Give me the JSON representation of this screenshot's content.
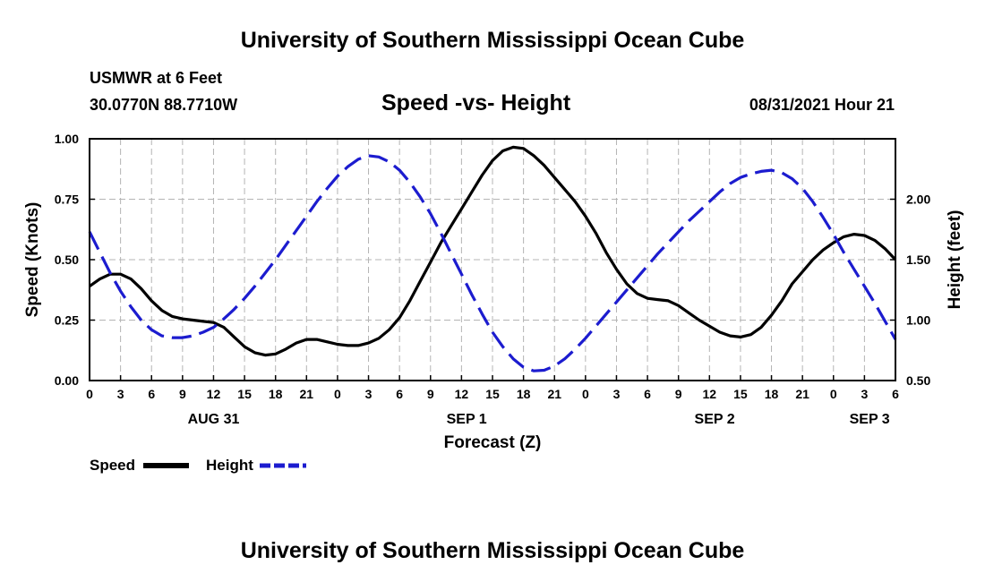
{
  "header": {
    "title": "University of Southern Mississippi Ocean Cube",
    "station": "USMWR at 6 Feet",
    "coords": "30.0770N  88.7710W",
    "date": "08/31/2021 Hour 21"
  },
  "footer": {
    "title": "University of Southern Mississippi Ocean Cube"
  },
  "colors": {
    "speed": "#000000",
    "height": "#1c1ccf",
    "grid": "#b4b4b4"
  },
  "chart_data": {
    "type": "line",
    "title": "Speed -vs- Height",
    "xlabel": "Forecast (Z)",
    "ylabel": "Speed (Knots)",
    "y2label": "Height (feet)",
    "x_range_hours": [
      0,
      78
    ],
    "x_tick_step_hours": 3,
    "x_tick_labels": [
      "0",
      "3",
      "6",
      "9",
      "12",
      "15",
      "18",
      "21",
      "0",
      "3",
      "6",
      "9",
      "12",
      "15",
      "18",
      "21",
      "0",
      "3",
      "6",
      "9",
      "12",
      "15",
      "18",
      "21",
      "0",
      "3",
      "6"
    ],
    "date_labels": [
      {
        "label": "AUG 31",
        "hour": 12
      },
      {
        "label": "SEP 1",
        "hour": 36.5
      },
      {
        "label": "SEP 2",
        "hour": 60.5
      },
      {
        "label": "SEP 3",
        "hour": 75.5
      }
    ],
    "ylim": [
      0,
      1.0
    ],
    "y_ticks": [
      "0.00",
      "0.25",
      "0.50",
      "0.75",
      "1.00"
    ],
    "y2lim": [
      0.5,
      2.5
    ],
    "y2_ticks": [
      "0.50",
      "1.00",
      "1.50",
      "2.00"
    ],
    "legend": [
      "Speed",
      "Height"
    ],
    "series": [
      {
        "name": "Speed",
        "axis": "left",
        "style": "solid",
        "x": [
          0,
          1,
          2,
          3,
          4,
          5,
          6,
          7,
          8,
          9,
          10,
          11,
          12,
          13,
          14,
          15,
          16,
          17,
          18,
          19,
          20,
          21,
          22,
          23,
          24,
          25,
          26,
          27,
          28,
          29,
          30,
          31,
          32,
          33,
          34,
          35,
          36,
          37,
          38,
          39,
          40,
          41,
          42,
          43,
          44,
          45,
          46,
          47,
          48,
          49,
          50,
          51,
          52,
          53,
          54,
          55,
          56,
          57,
          58,
          59,
          60,
          61,
          62,
          63,
          64,
          65,
          66,
          67,
          68,
          69,
          70,
          71,
          72,
          73,
          74,
          75,
          76,
          77,
          78
        ],
        "values": [
          0.39,
          0.42,
          0.44,
          0.44,
          0.42,
          0.38,
          0.33,
          0.29,
          0.265,
          0.255,
          0.25,
          0.245,
          0.24,
          0.22,
          0.18,
          0.14,
          0.115,
          0.105,
          0.11,
          0.13,
          0.155,
          0.17,
          0.17,
          0.16,
          0.15,
          0.145,
          0.145,
          0.155,
          0.175,
          0.21,
          0.26,
          0.33,
          0.41,
          0.49,
          0.57,
          0.64,
          0.71,
          0.78,
          0.85,
          0.91,
          0.95,
          0.965,
          0.96,
          0.93,
          0.89,
          0.84,
          0.79,
          0.74,
          0.68,
          0.61,
          0.53,
          0.46,
          0.4,
          0.36,
          0.34,
          0.335,
          0.33,
          0.31,
          0.28,
          0.25,
          0.225,
          0.2,
          0.185,
          0.18,
          0.19,
          0.22,
          0.27,
          0.33,
          0.4,
          0.45,
          0.5,
          0.54,
          0.57,
          0.595,
          0.605,
          0.6,
          0.58,
          0.545,
          0.5
        ]
      },
      {
        "name": "Height",
        "axis": "right",
        "style": "dashed",
        "x": [
          0,
          1,
          2,
          3,
          4,
          5,
          6,
          7,
          8,
          9,
          10,
          11,
          12,
          13,
          14,
          15,
          16,
          17,
          18,
          19,
          20,
          21,
          22,
          23,
          24,
          25,
          26,
          27,
          28,
          29,
          30,
          31,
          32,
          33,
          34,
          35,
          36,
          37,
          38,
          39,
          40,
          41,
          42,
          43,
          44,
          45,
          46,
          47,
          48,
          49,
          50,
          51,
          52,
          53,
          54,
          55,
          56,
          57,
          58,
          59,
          60,
          61,
          62,
          63,
          64,
          65,
          66,
          67,
          68,
          69,
          70,
          71,
          72,
          73,
          74,
          75,
          76,
          77,
          78
        ],
        "values": [
          1.73,
          1.56,
          1.39,
          1.24,
          1.11,
          1.0,
          0.92,
          0.87,
          0.855,
          0.855,
          0.87,
          0.9,
          0.94,
          1.01,
          1.09,
          1.18,
          1.28,
          1.39,
          1.5,
          1.62,
          1.74,
          1.86,
          1.98,
          2.09,
          2.19,
          2.27,
          2.33,
          2.36,
          2.35,
          2.31,
          2.24,
          2.14,
          2.02,
          1.88,
          1.72,
          1.55,
          1.38,
          1.21,
          1.05,
          0.9,
          0.78,
          0.68,
          0.61,
          0.58,
          0.585,
          0.62,
          0.68,
          0.76,
          0.85,
          0.95,
          1.05,
          1.15,
          1.25,
          1.35,
          1.45,
          1.55,
          1.64,
          1.73,
          1.82,
          1.9,
          1.98,
          2.06,
          2.13,
          2.18,
          2.21,
          2.23,
          2.24,
          2.22,
          2.17,
          2.09,
          1.98,
          1.85,
          1.71,
          1.56,
          1.42,
          1.28,
          1.14,
          0.99,
          0.84
        ]
      }
    ]
  }
}
